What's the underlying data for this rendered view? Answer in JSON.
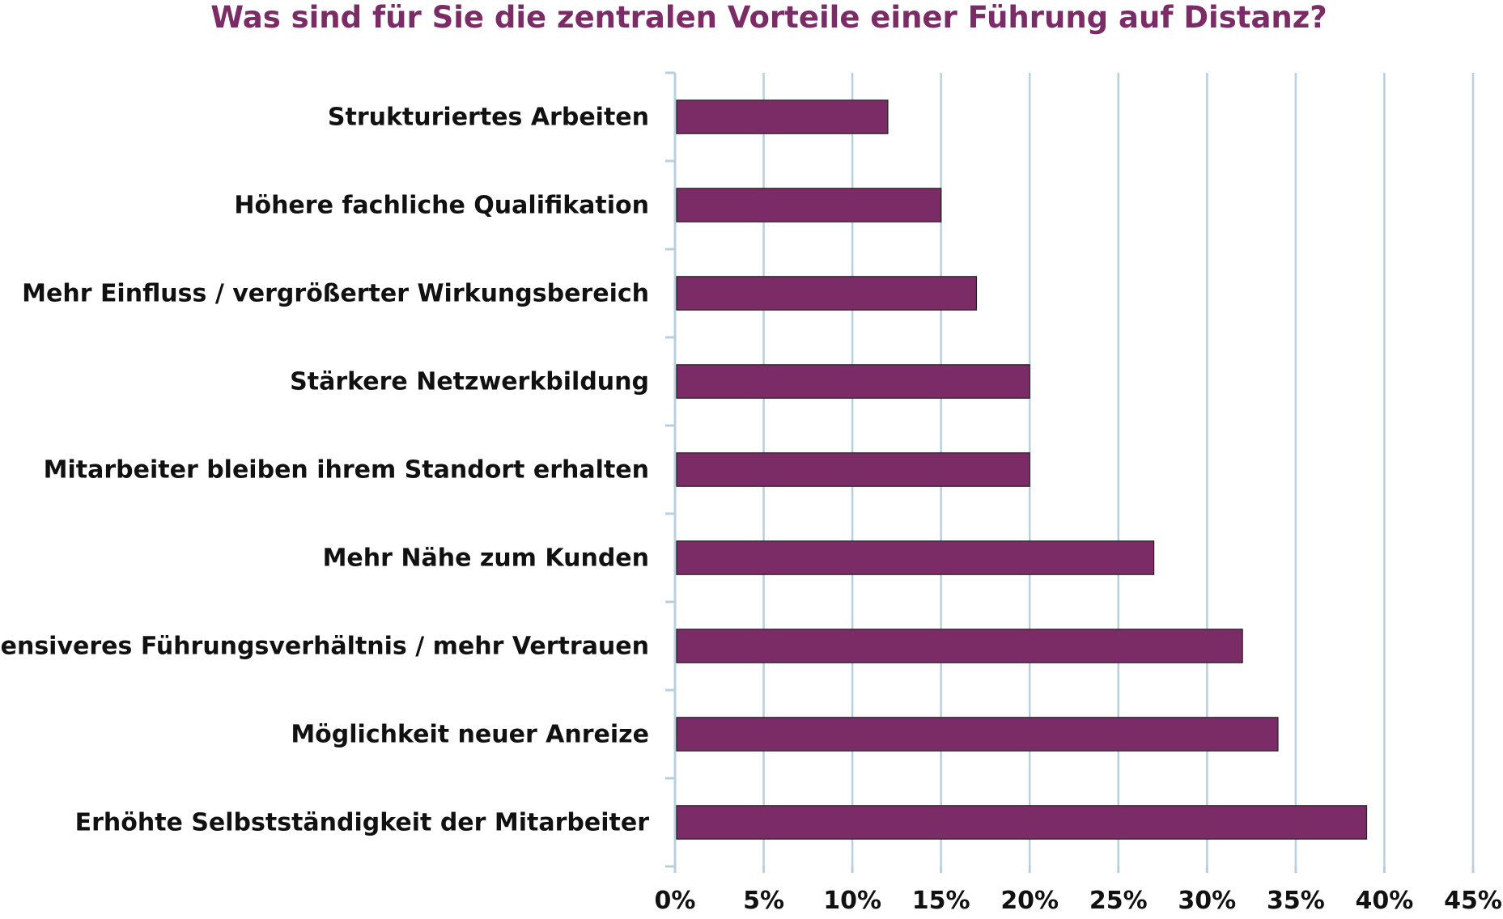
{
  "chart_data": {
    "type": "bar",
    "orientation": "horizontal",
    "title": "Was sind für Sie die zentralen Vorteile einer Führung auf Distanz?",
    "categories": [
      "Strukturiertes Arbeiten",
      "Höhere fachliche Qualifikation",
      "Mehr Einfluss / vergrößerter Wirkungsbereich",
      "Stärkere Netzwerkbildung",
      "Mitarbeiter bleiben ihrem Standort erhalten",
      "Mehr Nähe zum Kunden",
      "Intensiveres Führungsverhältnis / mehr Vertrauen",
      "Möglichkeit neuer Anreize",
      "Erhöhte Selbstständigkeit der Mitarbeiter"
    ],
    "values": [
      12,
      15,
      17,
      20,
      20,
      27,
      32,
      34,
      39
    ],
    "xlim": [
      0,
      45
    ],
    "xticks": [
      0,
      5,
      10,
      15,
      20,
      25,
      30,
      35,
      40,
      45
    ],
    "xtick_labels": [
      "0%",
      "5%",
      "10%",
      "15%",
      "20%",
      "25%",
      "30%",
      "35%",
      "40%",
      "45%"
    ],
    "xlabel": "",
    "ylabel": "",
    "grid": true,
    "legend": "none",
    "colors": {
      "bar": "#7b2c67",
      "bar_edge": "#222222",
      "grid": "#b8cfe0",
      "axis": "#b8cfe0",
      "title": "#7b2c67"
    }
  }
}
